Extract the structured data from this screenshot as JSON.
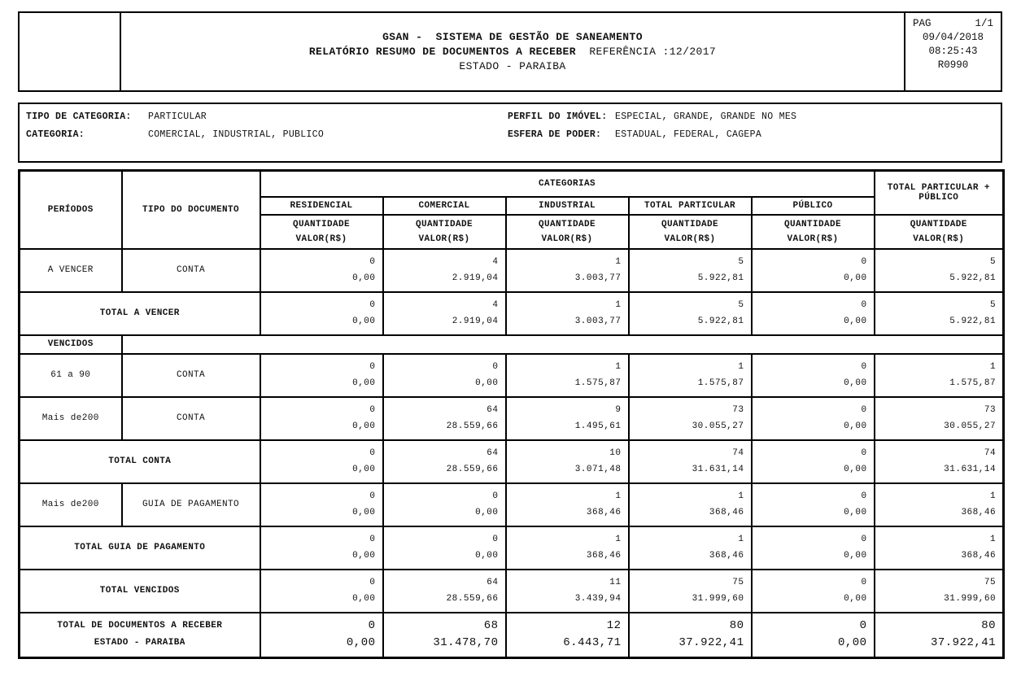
{
  "header": {
    "title_line1": "GSAN -  SISTEMA DE GESTÃO DE SANEAMENTO",
    "title_line2_bold": "RELATÓRIO RESUMO DE DOCUMENTOS A RECEBER",
    "title_line2_normal": "REFERÊNCIA :12/2017",
    "title_line3": "ESTADO - PARAIBA",
    "page_label": "PAG",
    "page_value": "1/1",
    "date": "09/04/2018",
    "time": "08:25:43",
    "report_code": "R0990"
  },
  "filters": {
    "tipo_de_categoria_label": "TIPO DE CATEGORIA:",
    "tipo_de_categoria_value": "PARTICULAR",
    "categoria_label": "CATEGORIA:",
    "categoria_value": "COMERCIAL, INDUSTRIAL, PUBLICO",
    "perfil_label": "PERFIL DO IMÓVEL:",
    "perfil_value": "ESPECIAL, GRANDE, GRANDE NO MES",
    "esfera_label": "ESFERA DE PODER:",
    "esfera_value": "ESTADUAL, FEDERAL, CAGEPA"
  },
  "table": {
    "col_periodos": "PERÍODOS",
    "col_tipo_documento": "TIPO DO DOCUMENTO",
    "col_categorias": "CATEGORIAS",
    "col_total_line1": "TOTAL PARTICULAR +",
    "col_total_line2": "PÚBLICO",
    "categories": [
      "RESIDENCIAL",
      "COMERCIAL",
      "INDUSTRIAL",
      "TOTAL PARTICULAR",
      "PÚBLICO"
    ],
    "subheader_line1": "QUANTIDADE",
    "subheader_line2": "VALOR(R$)",
    "rows": [
      {
        "type": "data",
        "periodo": "A VENCER",
        "documento": "CONTA",
        "cells": [
          [
            "0",
            "0,00"
          ],
          [
            "4",
            "2.919,04"
          ],
          [
            "1",
            "3.003,77"
          ],
          [
            "5",
            "5.922,81"
          ],
          [
            "0",
            "0,00"
          ],
          [
            "5",
            "5.922,81"
          ]
        ]
      },
      {
        "type": "total",
        "label": "TOTAL A VENCER",
        "cells": [
          [
            "0",
            "0,00"
          ],
          [
            "4",
            "2.919,04"
          ],
          [
            "1",
            "3.003,77"
          ],
          [
            "5",
            "5.922,81"
          ],
          [
            "0",
            "0,00"
          ],
          [
            "5",
            "5.922,81"
          ]
        ]
      },
      {
        "type": "section",
        "label": "VENCIDOS"
      },
      {
        "type": "data",
        "periodo": "61 a 90",
        "documento": "CONTA",
        "cells": [
          [
            "0",
            "0,00"
          ],
          [
            "0",
            "0,00"
          ],
          [
            "1",
            "1.575,87"
          ],
          [
            "1",
            "1.575,87"
          ],
          [
            "0",
            "0,00"
          ],
          [
            "1",
            "1.575,87"
          ]
        ]
      },
      {
        "type": "data",
        "periodo": "Mais de200",
        "documento": "CONTA",
        "cells": [
          [
            "0",
            "0,00"
          ],
          [
            "64",
            "28.559,66"
          ],
          [
            "9",
            "1.495,61"
          ],
          [
            "73",
            "30.055,27"
          ],
          [
            "0",
            "0,00"
          ],
          [
            "73",
            "30.055,27"
          ]
        ]
      },
      {
        "type": "total",
        "label": "TOTAL CONTA",
        "cells": [
          [
            "0",
            "0,00"
          ],
          [
            "64",
            "28.559,66"
          ],
          [
            "10",
            "3.071,48"
          ],
          [
            "74",
            "31.631,14"
          ],
          [
            "0",
            "0,00"
          ],
          [
            "74",
            "31.631,14"
          ]
        ]
      },
      {
        "type": "data",
        "periodo": "Mais de200",
        "documento": "GUIA DE PAGAMENTO",
        "cells": [
          [
            "0",
            "0,00"
          ],
          [
            "0",
            "0,00"
          ],
          [
            "1",
            "368,46"
          ],
          [
            "1",
            "368,46"
          ],
          [
            "0",
            "0,00"
          ],
          [
            "1",
            "368,46"
          ]
        ]
      },
      {
        "type": "total",
        "label": "TOTAL GUIA DE PAGAMENTO",
        "cells": [
          [
            "0",
            "0,00"
          ],
          [
            "0",
            "0,00"
          ],
          [
            "1",
            "368,46"
          ],
          [
            "1",
            "368,46"
          ],
          [
            "0",
            "0,00"
          ],
          [
            "1",
            "368,46"
          ]
        ]
      },
      {
        "type": "total",
        "label": "TOTAL VENCIDOS",
        "cells": [
          [
            "0",
            "0,00"
          ],
          [
            "64",
            "28.559,66"
          ],
          [
            "11",
            "3.439,94"
          ],
          [
            "75",
            "31.999,60"
          ],
          [
            "0",
            "0,00"
          ],
          [
            "75",
            "31.999,60"
          ]
        ]
      },
      {
        "type": "grandtotal",
        "label_line1": "TOTAL DE DOCUMENTOS A RECEBER",
        "label_line2": "ESTADO - PARAIBA",
        "cells": [
          [
            "0",
            "0,00"
          ],
          [
            "68",
            "31.478,70"
          ],
          [
            "12",
            "6.443,71"
          ],
          [
            "80",
            "37.922,41"
          ],
          [
            "0",
            "0,00"
          ],
          [
            "80",
            "37.922,41"
          ]
        ]
      }
    ]
  }
}
